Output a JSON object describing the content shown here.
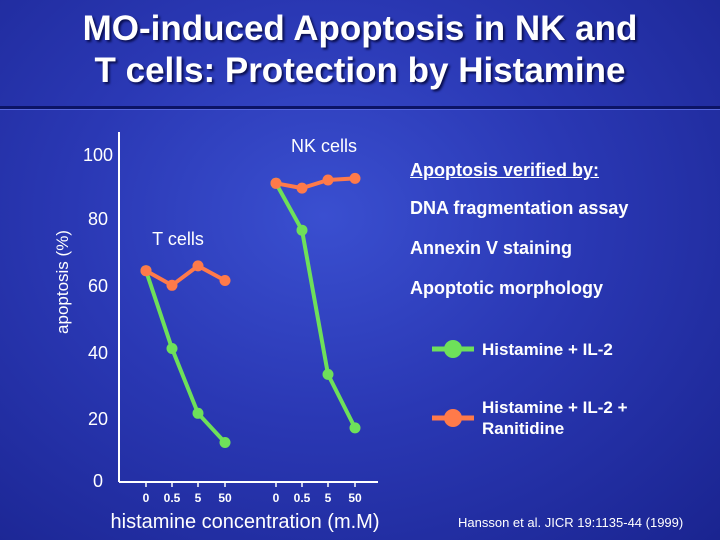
{
  "title_line1": "MO-induced Apoptosis in NK and",
  "title_line2": "T cells:  Protection by Histamine",
  "chart_data": {
    "type": "line",
    "ylabel": "apoptosis (%)",
    "xlabel": "histamine concentration (m.M)",
    "yticks": [
      "100",
      "80",
      "60",
      "40",
      "20",
      "0"
    ],
    "ylim": [
      0,
      100
    ],
    "x_categories": [
      "0",
      "0.5",
      "5",
      "50"
    ],
    "panels": [
      {
        "label": "T cells",
        "series": [
          {
            "legend": "Histamine + IL-2",
            "values": [
              61.5,
              37.5,
              17.5,
              8.5
            ]
          },
          {
            "legend": "Histamine + IL-2 + Ranitidine",
            "values": [
              61.5,
              57,
              63,
              58.5
            ]
          }
        ]
      },
      {
        "label": "NK cells",
        "series": [
          {
            "legend": "Histamine + IL-2",
            "values": [
              88.5,
              74,
              29.5,
              13
            ]
          },
          {
            "legend": "Histamine + IL-2 + Ranitidine",
            "values": [
              88.5,
              87,
              89.5,
              90
            ]
          }
        ]
      }
    ]
  },
  "side_panel": {
    "heading": "Apoptosis verified by:",
    "methods": [
      "DNA fragmentation assay",
      "Annexin V staining",
      "Apoptotic morphology"
    ]
  },
  "legend": {
    "green_label": "Histamine + IL-2",
    "orange_line1": "Histamine + IL-2 +",
    "orange_line2": "Ranitidine"
  },
  "colors": {
    "green": "#6ee05a",
    "orange": "#ff7a4a"
  },
  "citation": "Hansson et al.  JICR 19:1135-44 (1999)"
}
